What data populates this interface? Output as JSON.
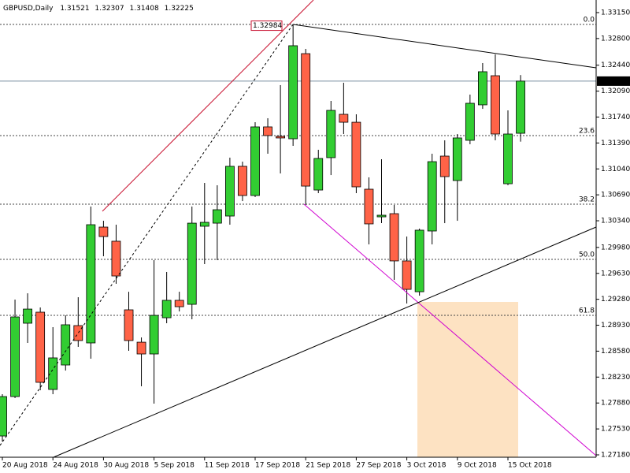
{
  "chart_data": {
    "type": "candlestick",
    "symbol": "GBPUSD,Daily",
    "categories": [
      "20 Aug 2018",
      null,
      null,
      null,
      "24 Aug 2018",
      null,
      null,
      null,
      "30 Aug 2018",
      null,
      null,
      null,
      "5 Sep 2018",
      null,
      null,
      null,
      "11 Sep 2018",
      null,
      null,
      null,
      "17 Sep 2018",
      null,
      null,
      null,
      "21 Sep 2018",
      null,
      null,
      null,
      "27 Sep 2018",
      null,
      null,
      null,
      "3 Oct 2018",
      null,
      null,
      null,
      "9 Oct 2018",
      null,
      null,
      null,
      "15 Oct 2018",
      null
    ],
    "open": [
      1.27435,
      1.27967,
      1.28957,
      1.29106,
      1.28063,
      1.28393,
      1.28925,
      1.28691,
      1.30255,
      1.30064,
      1.29138,
      1.28701,
      1.28542,
      1.29031,
      1.29266,
      1.29212,
      1.30266,
      1.30308,
      1.30404,
      1.31075,
      1.30681,
      1.31607,
      1.31479,
      1.31447,
      1.32596,
      1.30755,
      1.31192,
      1.31777,
      1.3167,
      1.30766,
      1.30393,
      1.30436,
      1.29798,
      1.29382,
      1.30202,
      1.31213,
      1.30883,
      1.31426,
      1.31905,
      1.32298,
      1.3084,
      1.31521
    ],
    "high": [
      1.27999,
      1.29276,
      1.29361,
      1.2917,
      1.28904,
      1.29063,
      1.29308,
      1.30532,
      1.3034,
      1.30287,
      1.29382,
      1.28765,
      1.29808,
      1.29649,
      1.29382,
      1.30532,
      1.30851,
      1.30819,
      1.31192,
      1.31138,
      1.3167,
      1.31724,
      1.32171,
      1.32984,
      1.3266,
      1.31298,
      1.31958,
      1.32203,
      1.31777,
      1.30926,
      1.3117,
      1.30553,
      1.30127,
      1.30234,
      1.31245,
      1.31426,
      1.31511,
      1.32043,
      1.32469,
      1.32586,
      1.3183,
      1.32307
    ],
    "low": [
      1.2736,
      1.27946,
      1.28691,
      1.28052,
      1.27999,
      1.28318,
      1.28638,
      1.28478,
      1.29861,
      1.29489,
      1.28584,
      1.28106,
      1.27871,
      1.28957,
      1.29116,
      1.2901,
      1.29755,
      1.29808,
      1.30287,
      1.30606,
      1.3066,
      1.31245,
      1.30979,
      1.31351,
      1.30553,
      1.30713,
      1.30957,
      1.31511,
      1.30713,
      1.30021,
      1.30308,
      1.29542,
      1.29223,
      1.29329,
      1.30021,
      1.30308,
      1.3034,
      1.31373,
      1.31851,
      1.31426,
      1.30819,
      1.31408
    ],
    "close": [
      1.27967,
      1.29042,
      1.29148,
      1.28159,
      1.28489,
      1.28936,
      1.28723,
      1.30287,
      1.30127,
      1.29595,
      1.28723,
      1.28542,
      1.29063,
      1.29266,
      1.2918,
      1.30308,
      1.30319,
      1.30489,
      1.31075,
      1.30681,
      1.31607,
      1.3149,
      1.31458,
      1.32703,
      1.30808,
      1.31181,
      1.3183,
      1.3167,
      1.30798,
      1.30298,
      1.30415,
      1.29798,
      1.29414,
      1.30213,
      1.31138,
      1.30936,
      1.31458,
      1.31926,
      1.32352,
      1.31511,
      1.31511,
      1.32225
    ],
    "up_color": "#32cd32",
    "down_color": "#ff6347",
    "ylim": [
      1.27148,
      1.3332
    ],
    "yticks": [
      {
        "value": 1.3315,
        "label": "1.33150"
      },
      {
        "value": 1.328,
        "label": "1.32800"
      },
      {
        "value": 1.3244,
        "label": "1.32440"
      },
      {
        "value": 1.3209,
        "label": "1.32090"
      },
      {
        "value": 1.3174,
        "label": "1.31740"
      },
      {
        "value": 1.3139,
        "label": "1.31390"
      },
      {
        "value": 1.3104,
        "label": "1.31040"
      },
      {
        "value": 1.3069,
        "label": "1.30690"
      },
      {
        "value": 1.3034,
        "label": "1.30340"
      },
      {
        "value": 1.2998,
        "label": "1.29980"
      },
      {
        "value": 1.2963,
        "label": "1.29630"
      },
      {
        "value": 1.2928,
        "label": "1.29280"
      },
      {
        "value": 1.2893,
        "label": "1.28930"
      },
      {
        "value": 1.2858,
        "label": "1.28580"
      },
      {
        "value": 1.2823,
        "label": "1.28230"
      },
      {
        "value": 1.2788,
        "label": "1.27880"
      },
      {
        "value": 1.2753,
        "label": "1.27530"
      },
      {
        "value": 1.2718,
        "label": "1.27180"
      }
    ],
    "fibonacci": [
      {
        "label": "0.0",
        "value": 1.3299
      },
      {
        "label": "23.6",
        "value": 1.3149
      },
      {
        "label": "38.2",
        "value": 1.30564
      },
      {
        "label": "50.0",
        "value": 1.29819
      },
      {
        "label": "61.8",
        "value": 1.29063
      }
    ]
  }
}
